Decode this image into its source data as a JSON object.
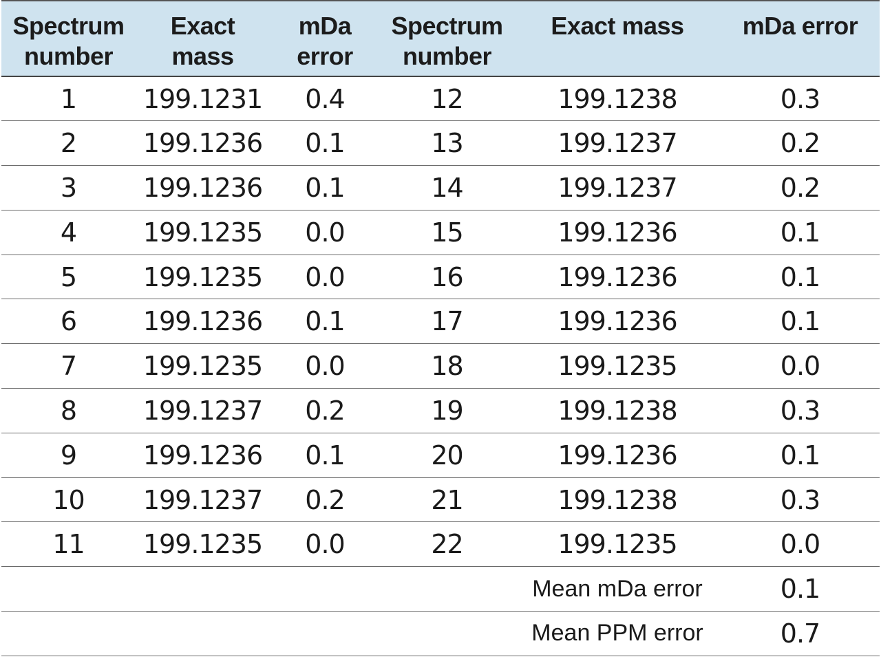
{
  "table": {
    "headers": [
      [
        "Spectrum",
        "number"
      ],
      [
        "Exact",
        "mass"
      ],
      [
        "mDa",
        "error"
      ],
      [
        "Spectrum",
        "number"
      ],
      [
        "Exact mass",
        ""
      ],
      [
        "mDa error",
        ""
      ]
    ],
    "rows": [
      [
        "1",
        "199.1231",
        "0.4",
        "12",
        "199.1238",
        "0.3"
      ],
      [
        "2",
        "199.1236",
        "0.1",
        "13",
        "199.1237",
        "0.2"
      ],
      [
        "3",
        "199.1236",
        "0.1",
        "14",
        "199.1237",
        "0.2"
      ],
      [
        "4",
        "199.1235",
        "0.0",
        "15",
        "199.1236",
        "0.1"
      ],
      [
        "5",
        "199.1235",
        "0.0",
        "16",
        "199.1236",
        "0.1"
      ],
      [
        "6",
        "199.1236",
        "0.1",
        "17",
        "199.1236",
        "0.1"
      ],
      [
        "7",
        "199.1235",
        "0.0",
        "18",
        "199.1235",
        "0.0"
      ],
      [
        "8",
        "199.1237",
        "0.2",
        "19",
        "199.1238",
        "0.3"
      ],
      [
        "9",
        "199.1236",
        "0.1",
        "20",
        "199.1236",
        "0.1"
      ],
      [
        "10",
        "199.1237",
        "0.2",
        "21",
        "199.1238",
        "0.3"
      ],
      [
        "11",
        "199.1235",
        "0.0",
        "22",
        "199.1235",
        "0.0"
      ]
    ],
    "summary": [
      {
        "label": "Mean mDa error",
        "value": "0.1"
      },
      {
        "label": "Mean PPM error",
        "value": "0.7"
      }
    ]
  },
  "colors": {
    "header_bg": "#cfe3ef",
    "rule": "#6a6a6a"
  }
}
